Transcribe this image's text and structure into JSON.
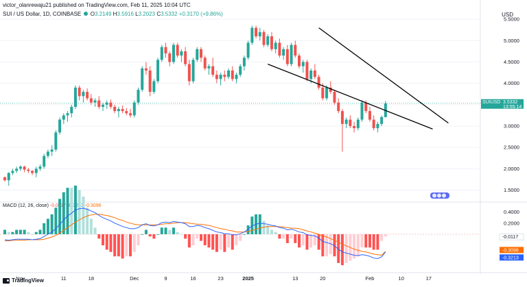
{
  "header": {
    "byline": "victor_olanrewaju21 published on TradingView.com, Feb 11, 2025 10:04 UTC",
    "symbol": "SUI / US Dollar, 1D, COINBASE",
    "o_label": "O",
    "o_value": "3.2149",
    "h_label": "H",
    "h_value": "3.5916",
    "l_label": "L",
    "l_value": "3.2023",
    "c_label": "C",
    "c_value": "3.5332",
    "change": "+0.3170 (+9.86%)"
  },
  "currency": "USD",
  "price_tag": {
    "symbol": "SUIUSD",
    "value": "3.5332",
    "countdown": "13:55:14"
  },
  "macd_header": {
    "label": "MACD (12, 26, close)",
    "hist": "-0.0117",
    "macd": "-0.3213",
    "signal": "-0.3096"
  },
  "macd_tags": {
    "hist": "-0.0117",
    "signal": "-0.3096",
    "macd": "-0.3213"
  },
  "events_badge": "",
  "footer": {
    "brand": "TradingView"
  },
  "colors": {
    "up": "#26a69a",
    "down": "#ef5350",
    "macd": "#2962ff",
    "signal": "#ff6d00",
    "trendline": "#000000",
    "price_line": "#26a69a"
  },
  "chart_data": [
    {
      "type": "candlestick",
      "yscale": "linear",
      "ylim": [
        1.3,
        5.55
      ],
      "yticks": [
        1.5,
        2.0,
        2.5,
        3.0,
        3.5,
        4.0,
        4.5,
        5.0,
        5.5
      ],
      "ytick_labels": [
        "1.5000",
        "2.0000",
        "2.5000",
        "3.0000",
        "3.5000",
        "4.0000",
        "4.5000",
        "5.0000",
        "5.5000"
      ],
      "xtick_labels": [
        "Nov",
        "11",
        "18",
        "Dec",
        "9",
        "16",
        "23",
        "2025",
        "13",
        "20",
        "Feb",
        "10",
        "17"
      ],
      "xtick_index": [
        4,
        15,
        22,
        33,
        41,
        48,
        55,
        62,
        74,
        81,
        93,
        101,
        108
      ],
      "candles": [
        [
          1.8,
          1.82,
          1.7,
          1.73
        ],
        [
          1.73,
          1.92,
          1.6,
          1.9
        ],
        [
          1.9,
          2.0,
          1.85,
          1.95
        ],
        [
          1.95,
          2.05,
          1.9,
          2.0
        ],
        [
          2.0,
          2.08,
          1.95,
          2.05
        ],
        [
          2.05,
          2.07,
          1.92,
          1.98
        ],
        [
          1.98,
          2.02,
          1.9,
          1.95
        ],
        [
          1.95,
          1.97,
          1.85,
          1.9
        ],
        [
          1.9,
          2.05,
          1.8,
          2.0
        ],
        [
          2.0,
          2.1,
          1.95,
          2.05
        ],
        [
          2.05,
          2.35,
          2.0,
          2.3
        ],
        [
          2.3,
          2.45,
          2.25,
          2.4
        ],
        [
          2.4,
          2.55,
          2.3,
          2.45
        ],
        [
          2.45,
          2.9,
          2.4,
          2.85
        ],
        [
          2.85,
          3.2,
          2.8,
          3.15
        ],
        [
          3.15,
          3.3,
          3.05,
          3.25
        ],
        [
          3.25,
          3.35,
          3.1,
          3.3
        ],
        [
          3.3,
          3.5,
          3.2,
          3.45
        ],
        [
          3.45,
          3.95,
          3.4,
          3.9
        ],
        [
          3.9,
          3.95,
          3.6,
          3.7
        ],
        [
          3.7,
          3.85,
          3.55,
          3.8
        ],
        [
          3.8,
          3.88,
          3.6,
          3.65
        ],
        [
          3.65,
          3.75,
          3.5,
          3.55
        ],
        [
          3.55,
          3.65,
          3.45,
          3.6
        ],
        [
          3.6,
          3.7,
          3.4,
          3.45
        ],
        [
          3.45,
          3.55,
          3.35,
          3.5
        ],
        [
          3.5,
          3.6,
          3.4,
          3.55
        ],
        [
          3.55,
          3.62,
          3.4,
          3.45
        ],
        [
          3.45,
          3.5,
          3.3,
          3.35
        ],
        [
          3.35,
          3.45,
          3.2,
          3.4
        ],
        [
          3.4,
          3.48,
          3.3,
          3.35
        ],
        [
          3.35,
          3.42,
          3.25,
          3.3
        ],
        [
          3.3,
          3.4,
          3.2,
          3.25
        ],
        [
          3.25,
          3.6,
          3.2,
          3.55
        ],
        [
          3.55,
          3.9,
          3.5,
          3.85
        ],
        [
          3.85,
          4.4,
          3.8,
          4.35
        ],
        [
          4.35,
          4.5,
          4.2,
          4.3
        ],
        [
          4.3,
          4.4,
          3.7,
          3.8
        ],
        [
          3.8,
          4.1,
          3.75,
          4.05
        ],
        [
          4.05,
          4.6,
          4.0,
          4.55
        ],
        [
          4.55,
          4.9,
          4.5,
          4.85
        ],
        [
          4.85,
          4.95,
          4.6,
          4.7
        ],
        [
          4.7,
          4.75,
          4.4,
          4.5
        ],
        [
          4.5,
          4.95,
          4.45,
          4.9
        ],
        [
          4.9,
          4.95,
          4.6,
          4.65
        ],
        [
          4.65,
          4.8,
          4.5,
          4.75
        ],
        [
          4.75,
          4.85,
          4.4,
          4.45
        ],
        [
          4.45,
          4.55,
          3.95,
          4.05
        ],
        [
          4.05,
          4.6,
          4.0,
          4.55
        ],
        [
          4.55,
          4.85,
          4.5,
          4.8
        ],
        [
          4.8,
          4.85,
          4.5,
          4.6
        ],
        [
          4.6,
          4.65,
          4.3,
          4.35
        ],
        [
          4.35,
          4.45,
          4.2,
          4.4
        ],
        [
          4.4,
          4.6,
          4.15,
          4.2
        ],
        [
          4.2,
          4.3,
          4.0,
          4.1
        ],
        [
          4.1,
          4.25,
          3.95,
          4.2
        ],
        [
          4.2,
          4.3,
          4.05,
          4.15
        ],
        [
          4.15,
          4.35,
          4.1,
          4.3
        ],
        [
          4.3,
          4.4,
          4.05,
          4.1
        ],
        [
          4.1,
          4.25,
          4.0,
          4.2
        ],
        [
          4.2,
          4.45,
          4.15,
          4.4
        ],
        [
          4.4,
          4.65,
          4.3,
          4.6
        ],
        [
          4.6,
          5.0,
          4.55,
          4.95
        ],
        [
          4.95,
          5.35,
          4.9,
          5.3
        ],
        [
          5.3,
          5.35,
          5.05,
          5.1
        ],
        [
          5.1,
          5.3,
          5.0,
          5.2
        ],
        [
          5.2,
          5.25,
          4.85,
          4.9
        ],
        [
          4.9,
          5.15,
          4.85,
          5.1
        ],
        [
          5.1,
          5.2,
          4.75,
          4.8
        ],
        [
          4.8,
          5.0,
          4.7,
          4.95
        ],
        [
          4.95,
          5.05,
          4.6,
          4.65
        ],
        [
          4.65,
          4.85,
          4.55,
          4.8
        ],
        [
          4.8,
          4.9,
          4.4,
          4.45
        ],
        [
          4.45,
          4.95,
          4.4,
          4.9
        ],
        [
          4.9,
          5.0,
          4.6,
          4.65
        ],
        [
          4.65,
          4.7,
          4.35,
          4.4
        ],
        [
          4.4,
          4.55,
          4.25,
          4.5
        ],
        [
          4.5,
          4.55,
          4.05,
          4.1
        ],
        [
          4.1,
          4.35,
          4.0,
          4.3
        ],
        [
          4.3,
          4.45,
          4.1,
          4.15
        ],
        [
          4.15,
          4.2,
          3.85,
          3.9
        ],
        [
          3.9,
          4.0,
          3.6,
          3.65
        ],
        [
          3.65,
          3.95,
          3.6,
          3.9
        ],
        [
          3.9,
          4.05,
          3.75,
          3.8
        ],
        [
          3.8,
          3.85,
          3.5,
          3.55
        ],
        [
          3.55,
          3.65,
          3.3,
          3.35
        ],
        [
          3.35,
          3.4,
          2.4,
          3.05
        ],
        [
          3.05,
          3.2,
          2.95,
          3.15
        ],
        [
          3.15,
          3.25,
          2.95,
          3.0
        ],
        [
          3.0,
          3.1,
          2.85,
          2.95
        ],
        [
          2.95,
          3.2,
          2.9,
          3.15
        ],
        [
          3.15,
          3.6,
          3.1,
          3.55
        ],
        [
          3.55,
          3.6,
          3.3,
          3.35
        ],
        [
          3.35,
          3.45,
          3.1,
          3.15
        ],
        [
          3.15,
          3.25,
          2.9,
          2.95
        ],
        [
          2.95,
          3.1,
          2.85,
          3.05
        ],
        [
          3.05,
          3.25,
          3.0,
          3.21
        ],
        [
          3.21,
          3.59,
          3.2,
          3.53
        ]
      ],
      "trendlines": [
        {
          "from": [
            80,
            5.3
          ],
          "to": [
            113,
            3.07
          ]
        },
        {
          "from": [
            67,
            4.45
          ],
          "to": [
            109,
            2.93
          ]
        }
      ],
      "last_price": 3.5332
    },
    {
      "type": "macd",
      "title": "MACD (12, 26, close)",
      "ylim": [
        -0.62,
        0.52
      ],
      "yticks": [
        0.4,
        0.2
      ],
      "ytick_labels": [
        "0.4000",
        "0.2000"
      ],
      "macd": [
        -0.1,
        -0.11,
        -0.1,
        -0.09,
        -0.09,
        -0.09,
        -0.09,
        -0.1,
        -0.09,
        -0.08,
        -0.04,
        0.0,
        0.04,
        0.1,
        0.18,
        0.26,
        0.33,
        0.38,
        0.44,
        0.46,
        0.47,
        0.45,
        0.42,
        0.39,
        0.34,
        0.3,
        0.27,
        0.24,
        0.2,
        0.17,
        0.14,
        0.12,
        0.1,
        0.1,
        0.12,
        0.17,
        0.19,
        0.16,
        0.15,
        0.17,
        0.21,
        0.22,
        0.21,
        0.23,
        0.22,
        0.21,
        0.19,
        0.14,
        0.14,
        0.16,
        0.15,
        0.12,
        0.1,
        0.07,
        0.04,
        0.03,
        0.01,
        0.01,
        -0.01,
        -0.01,
        0.01,
        0.04,
        0.09,
        0.15,
        0.18,
        0.2,
        0.19,
        0.18,
        0.16,
        0.15,
        0.12,
        0.11,
        0.08,
        0.09,
        0.07,
        0.04,
        0.03,
        -0.01,
        -0.02,
        -0.03,
        -0.07,
        -0.13,
        -0.15,
        -0.17,
        -0.21,
        -0.27,
        -0.32,
        -0.34,
        -0.36,
        -0.38,
        -0.39,
        -0.37,
        -0.38,
        -0.4,
        -0.43,
        -0.44,
        -0.41,
        -0.32
      ],
      "signal": [
        -0.12,
        -0.12,
        -0.11,
        -0.11,
        -0.11,
        -0.11,
        -0.1,
        -0.1,
        -0.1,
        -0.1,
        -0.09,
        -0.07,
        -0.05,
        -0.02,
        0.02,
        0.07,
        0.12,
        0.17,
        0.22,
        0.26,
        0.3,
        0.33,
        0.35,
        0.36,
        0.36,
        0.35,
        0.34,
        0.32,
        0.3,
        0.27,
        0.25,
        0.22,
        0.2,
        0.18,
        0.17,
        0.17,
        0.17,
        0.17,
        0.17,
        0.17,
        0.18,
        0.19,
        0.19,
        0.2,
        0.21,
        0.21,
        0.21,
        0.2,
        0.19,
        0.18,
        0.18,
        0.17,
        0.16,
        0.14,
        0.12,
        0.1,
        0.09,
        0.07,
        0.06,
        0.04,
        0.04,
        0.04,
        0.05,
        0.07,
        0.09,
        0.11,
        0.13,
        0.14,
        0.14,
        0.14,
        0.14,
        0.13,
        0.12,
        0.11,
        0.11,
        0.1,
        0.08,
        0.06,
        0.04,
        0.02,
        0.0,
        -0.03,
        -0.05,
        -0.08,
        -0.11,
        -0.14,
        -0.18,
        -0.21,
        -0.24,
        -0.27,
        -0.29,
        -0.31,
        -0.32,
        -0.34,
        -0.36,
        -0.37,
        -0.38,
        -0.31
      ]
    }
  ]
}
